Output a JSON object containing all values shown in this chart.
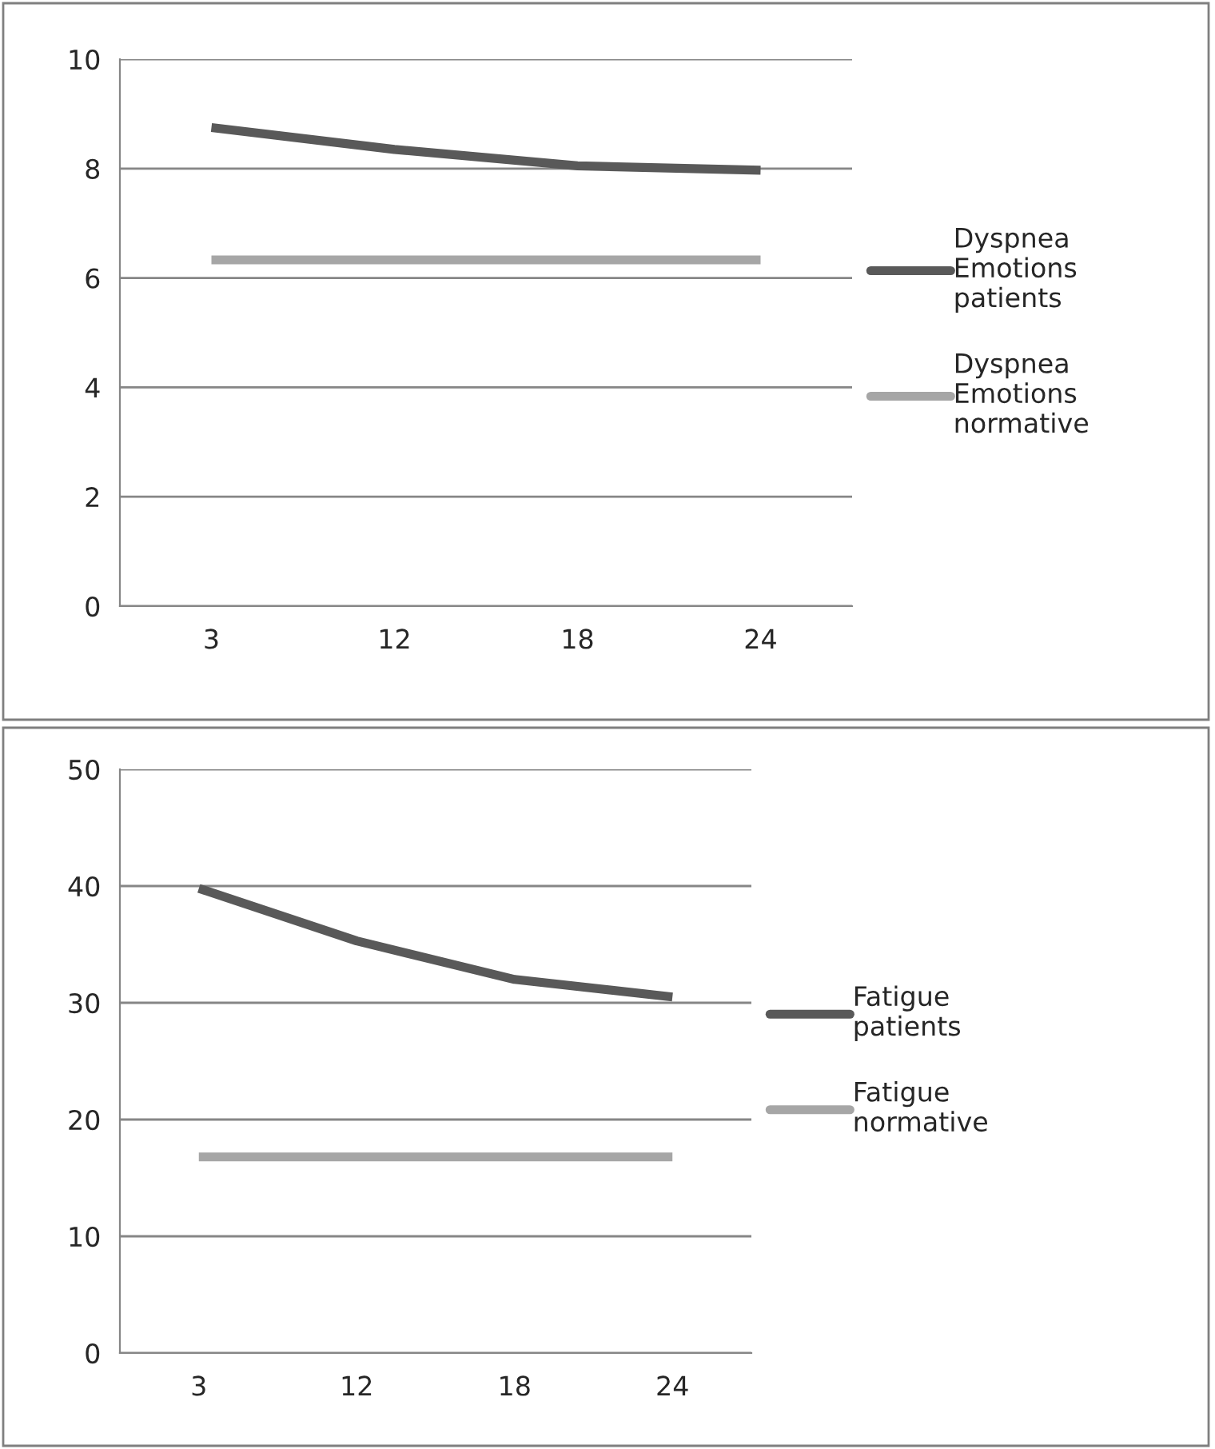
{
  "chart_data": [
    {
      "type": "line",
      "categories": [
        "3",
        "12",
        "18",
        "24"
      ],
      "ylim": [
        0,
        10
      ],
      "yticks": [
        0,
        2,
        4,
        6,
        8,
        10
      ],
      "grid": "y",
      "legend": "right",
      "marker": "none",
      "line_style": "solid",
      "series": [
        {
          "name": "Dyspnea Emotions patients",
          "color": "#595959",
          "values": [
            8.75,
            8.35,
            8.05,
            7.97
          ]
        },
        {
          "name": "Dyspnea Emotions normative",
          "color": "#a6a6a6",
          "values": [
            6.33,
            6.33,
            6.33,
            6.33
          ]
        }
      ]
    },
    {
      "type": "line",
      "categories": [
        "3",
        "12",
        "18",
        "24"
      ],
      "ylim": [
        0,
        50
      ],
      "yticks": [
        0,
        10,
        20,
        30,
        40,
        50
      ],
      "grid": "y",
      "legend": "right",
      "marker": "none",
      "line_style": "solid",
      "series": [
        {
          "name": "Fatigue patients",
          "color": "#595959",
          "values": [
            39.8,
            35.3,
            32.0,
            30.5
          ]
        },
        {
          "name": "Fatigue normative",
          "color": "#a6a6a6",
          "values": [
            16.8,
            16.8,
            16.8,
            16.8
          ]
        }
      ]
    }
  ]
}
